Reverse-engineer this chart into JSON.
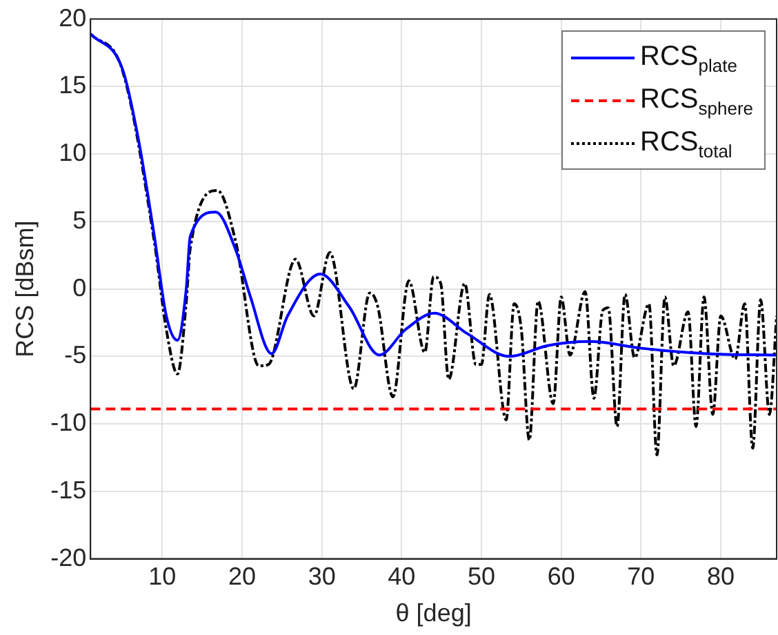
{
  "chart_data": {
    "type": "line",
    "xlabel": "θ [deg]",
    "ylabel": "RCS [dBsm]",
    "xlim": [
      1,
      87
    ],
    "ylim": [
      -20,
      20
    ],
    "xticks": [
      10,
      20,
      30,
      40,
      50,
      60,
      70,
      80
    ],
    "yticks": [
      -20,
      -15,
      -10,
      -5,
      0,
      5,
      10,
      15,
      20
    ],
    "grid": true,
    "legend": "top right",
    "marker": "none",
    "series": [
      {
        "name": "RCS$_{plate}$",
        "color": "#0000ff",
        "line_style": "solid",
        "x": [
          1,
          5,
          7,
          9,
          10.5,
          11.9,
          13,
          13.5,
          16.7,
          19.2,
          21,
          23.7,
          25.7,
          29.8,
          33.4,
          37.2,
          40.5,
          44.1,
          48.2,
          53.5,
          58.3,
          63.6,
          70.1,
          78.3,
          87
        ],
        "values": [
          18.9,
          16.3,
          11.1,
          3.9,
          -2,
          -3.8,
          0,
          3.9,
          5.7,
          2.9,
          -0.5,
          -4.8,
          -2,
          1.1,
          -1.3,
          -4.9,
          -3,
          -1.8,
          -3.3,
          -5,
          -4.2,
          -3.9,
          -4.4,
          -4.8,
          -4.9
        ]
      },
      {
        "name": "RCS$_{sphere}$",
        "color": "#ff0000",
        "line_style": "dashed",
        "x": [
          1,
          87
        ],
        "values": [
          -8.9,
          -8.9
        ]
      },
      {
        "name": "RCS$_{total}$",
        "color": "#000000",
        "line_style": "dotted",
        "x": [
          1,
          5,
          9,
          10.5,
          11.9,
          13,
          13.5,
          16.9,
          19.2,
          22.1,
          23.3,
          26.7,
          29,
          31,
          34,
          36,
          37,
          38.9,
          40.9,
          42.9,
          44,
          44.9,
          45.9,
          47.9,
          49.3,
          50,
          51,
          53.1,
          54.1,
          55,
          56,
          57.1,
          59,
          60,
          61.1,
          63,
          64.1,
          65.2,
          65.9,
          67,
          68,
          69.2,
          71,
          72,
          73,
          74.1,
          75.9,
          76.9,
          77.9,
          79,
          80,
          81.8,
          83,
          84,
          85,
          86.1,
          87
        ],
        "values": [
          18.9,
          16.2,
          3.5,
          -3,
          -6.3,
          -1,
          3,
          7.3,
          3.5,
          -5.7,
          -5.6,
          2.2,
          -2,
          2.7,
          -7.4,
          -0.3,
          -1.3,
          -8,
          0.6,
          -4.7,
          0.9,
          0.4,
          -6.7,
          0.4,
          -5.6,
          -5.6,
          -0.4,
          -9.7,
          -1.1,
          -3,
          -11.2,
          -0.9,
          -8.5,
          -0.6,
          -4.9,
          -0.2,
          -8.1,
          -1.6,
          -1.4,
          -10.2,
          -0.4,
          -5.1,
          -1.1,
          -12.3,
          -0.6,
          -5.7,
          -1.7,
          -10.2,
          -0.6,
          -9.3,
          -2,
          -5.2,
          -1.1,
          -11.8,
          -0.8,
          -9.3,
          -2
        ]
      }
    ]
  }
}
